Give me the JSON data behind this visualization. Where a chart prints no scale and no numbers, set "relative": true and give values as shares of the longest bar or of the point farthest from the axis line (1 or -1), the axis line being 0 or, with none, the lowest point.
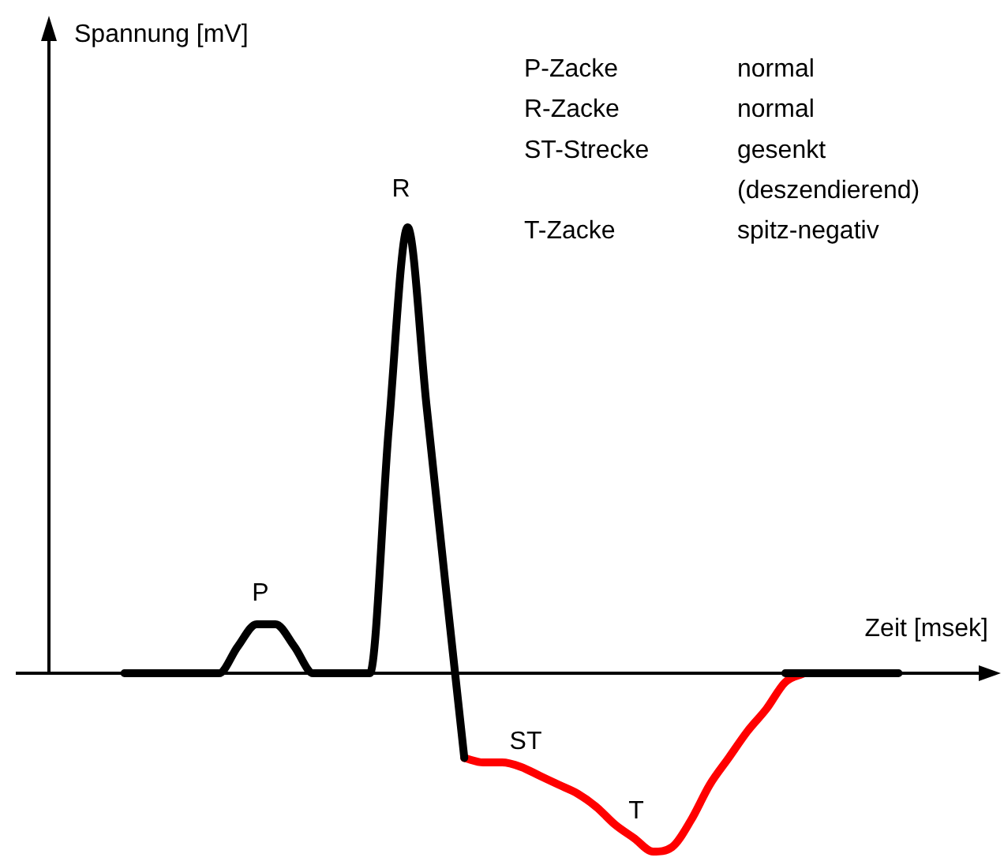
{
  "chart_data": {
    "type": "line",
    "relative": true,
    "xlabel": "Zeit [msek]",
    "categories": [
      null,
      null,
      null,
      null,
      null,
      null,
      null,
      null,
      null,
      null,
      null,
      null,
      null,
      null,
      null,
      null,
      null,
      null,
      null,
      null,
      null,
      null,
      null,
      null,
      null,
      null,
      null,
      null,
      null,
      null,
      null,
      null,
      null,
      null,
      null,
      null,
      null,
      null,
      null,
      null,
      null,
      null,
      null,
      null,
      null,
      null,
      null,
      null,
      null,
      null,
      null
    ],
    "series": [
      {
        "color": "#000000",
        "values": [
          null,
          null,
          null,
          null,
          0,
          0,
          0,
          0,
          0,
          0,
          0.06,
          0.11,
          0.11,
          0.06,
          0,
          0,
          0,
          0,
          0.55,
          1,
          0.6,
          0.2,
          -0.19,
          null,
          null,
          null,
          null,
          null,
          null,
          null,
          null,
          null,
          null,
          null,
          null,
          null,
          null,
          null,
          null,
          0,
          0,
          0,
          0,
          0,
          0,
          0,
          null,
          null,
          null,
          null,
          null
        ]
      },
      {
        "color": "#ff0000",
        "values": [
          null,
          null,
          null,
          null,
          null,
          null,
          null,
          null,
          null,
          null,
          null,
          null,
          null,
          null,
          null,
          null,
          null,
          null,
          null,
          null,
          null,
          null,
          -0.19,
          -0.2,
          -0.2,
          -0.21,
          -0.23,
          -0.25,
          -0.27,
          -0.3,
          -0.34,
          -0.37,
          -0.4,
          -0.39,
          -0.33,
          -0.25,
          -0.19,
          -0.13,
          -0.08,
          -0.02,
          0,
          null,
          null,
          null,
          null,
          null,
          null,
          null,
          null,
          null,
          null
        ]
      }
    ],
    "annotations": [
      "Spannung [mV]",
      "P",
      "R",
      "ST",
      "T",
      "P-Zacke",
      "normal",
      "R-Zacke",
      "normal",
      "ST-Strecke",
      "gesenkt\n(deszendierend)",
      "T-Zacke",
      "spitz-negativ"
    ],
    "legend": false,
    "marker": "none",
    "line_style": "solid"
  }
}
